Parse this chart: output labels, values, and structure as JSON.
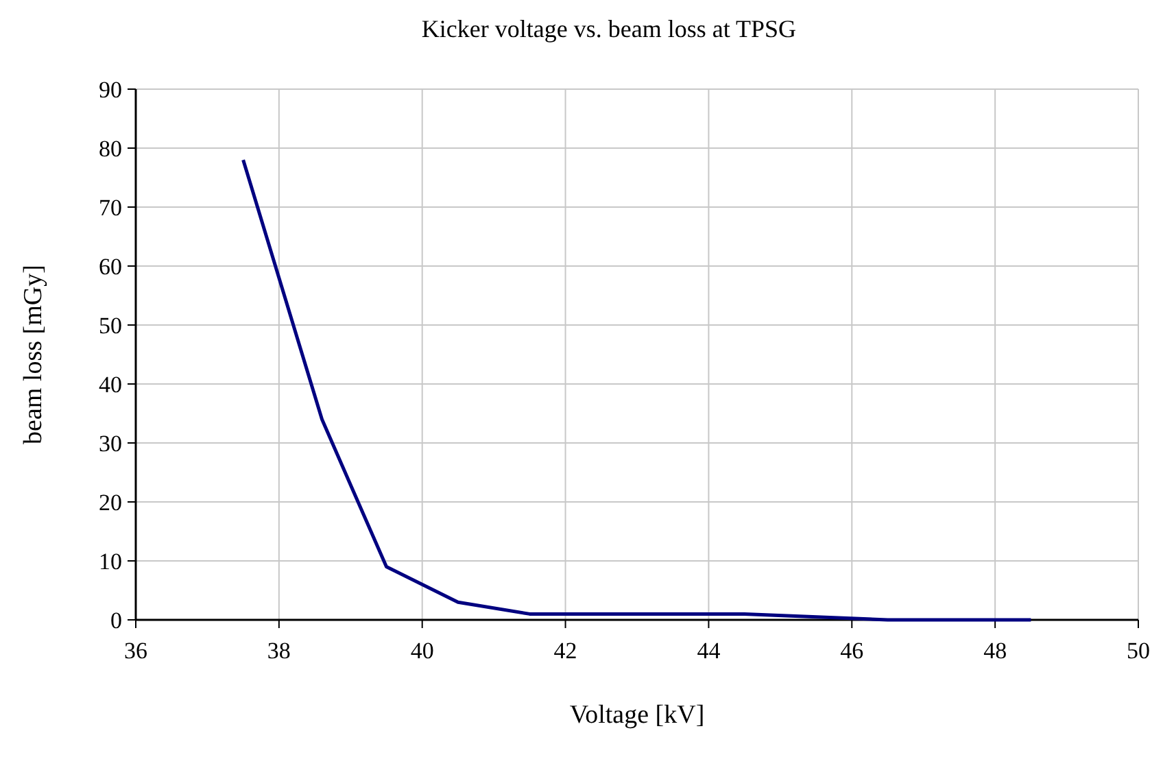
{
  "chart_data": {
    "type": "line",
    "title": "Kicker voltage vs. beam loss at TPSG",
    "xlabel": "Voltage [kV]",
    "ylabel": "beam loss [mGy]",
    "x": [
      37.5,
      38.6,
      39.5,
      40.5,
      41.5,
      44.5,
      46.5,
      48.5
    ],
    "series": [
      {
        "color": "#000080",
        "values": [
          78,
          34,
          9,
          3,
          1,
          1,
          0,
          0
        ]
      }
    ],
    "xlim": [
      36,
      50
    ],
    "xticks": [
      36,
      38,
      40,
      42,
      44,
      46,
      48,
      50
    ],
    "ylim": [
      0,
      90
    ],
    "yticks": [
      0,
      10,
      20,
      30,
      40,
      50,
      60,
      70,
      80,
      90
    ],
    "grid": true,
    "marker": "none",
    "line_style": "solid"
  }
}
